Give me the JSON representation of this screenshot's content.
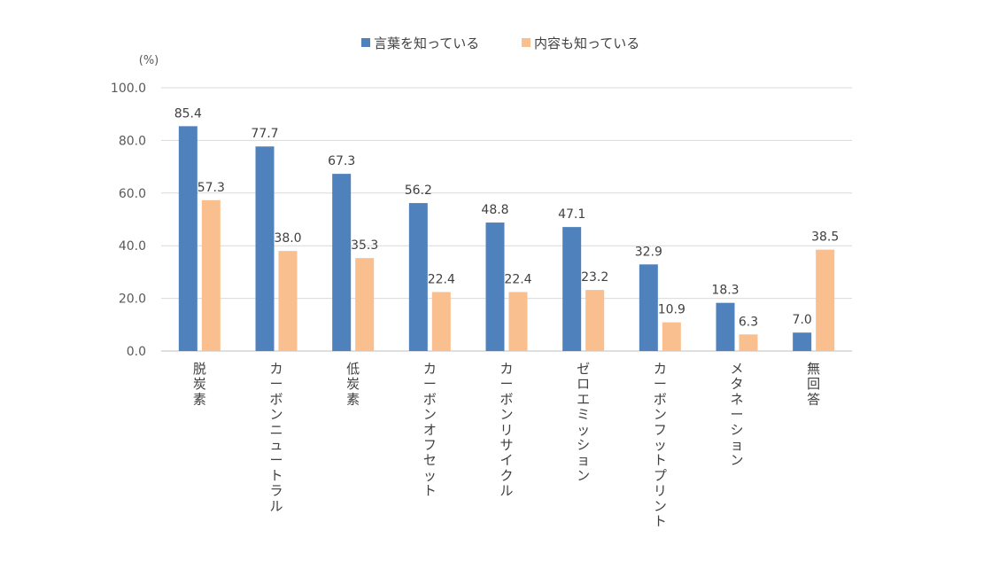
{
  "chart_data": {
    "type": "bar",
    "unit_label": "(%)",
    "title": "",
    "xlabel": "",
    "ylabel": "",
    "ylim": [
      0,
      100
    ],
    "yticks": [
      "0.0",
      "20.0",
      "40.0",
      "60.0",
      "80.0",
      "100.0"
    ],
    "grid": true,
    "legend_position": "top",
    "categories": [
      "脱炭素",
      "カーボンニュートラル",
      "低炭素",
      "カーボンオフセット",
      "カーボンリサイクル",
      "ゼロエミッション",
      "カーボンフットプリント",
      "メタネーション",
      "無回答"
    ],
    "series": [
      {
        "name": "言葉を知っている",
        "color": "#4F81BD",
        "values": [
          85.4,
          77.7,
          67.3,
          56.2,
          48.8,
          47.1,
          32.9,
          18.3,
          7.0
        ],
        "labels": [
          "85.4",
          "77.7",
          "67.3",
          "56.2",
          "48.8",
          "47.1",
          "32.9",
          "18.3",
          "7.0"
        ]
      },
      {
        "name": "内容も知っている",
        "color": "#F9BF8F",
        "values": [
          57.3,
          38.0,
          35.3,
          22.4,
          22.4,
          23.2,
          10.9,
          6.3,
          38.5
        ],
        "labels": [
          "57.3",
          "38.0",
          "35.3",
          "22.4",
          "22.4",
          "23.2",
          "10.9",
          "6.3",
          "38.5"
        ]
      }
    ]
  }
}
